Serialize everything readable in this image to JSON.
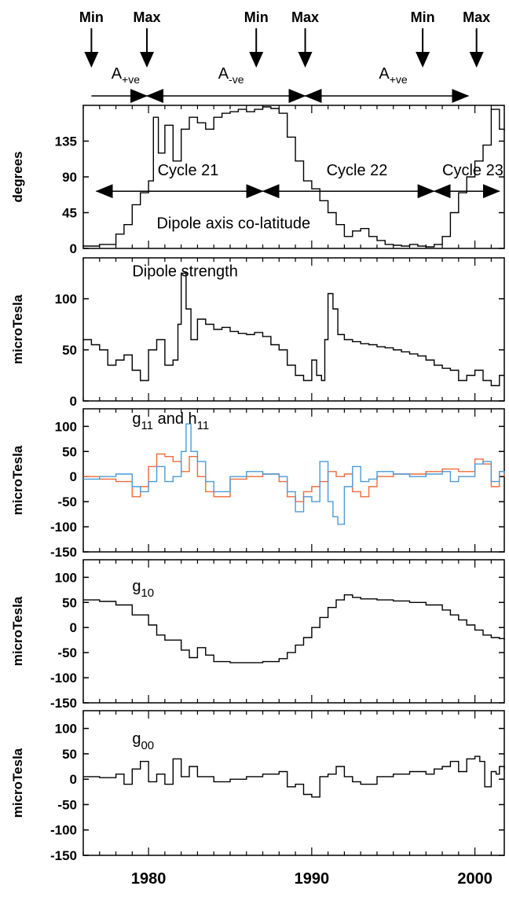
{
  "solar_events": [
    {
      "label": "Min",
      "year": 1976.5
    },
    {
      "label": "Max",
      "year": 1979.9
    },
    {
      "label": "Min",
      "year": 1986.6
    },
    {
      "label": "Max",
      "year": 1989.6
    },
    {
      "label": "Min",
      "year": 1996.8
    },
    {
      "label": "Max",
      "year": 2000.1
    }
  ],
  "polarity_periods": [
    {
      "main": "A",
      "sub": "+ve",
      "start": 1976.5,
      "end": 1979.9
    },
    {
      "main": "A",
      "sub": "-ve",
      "start": 1979.9,
      "end": 1989.6
    },
    {
      "main": "A",
      "sub": "+ve",
      "start": 1989.6,
      "end": 1999.6
    }
  ],
  "x_axis": {
    "min": 1976.0,
    "max": 2001.8,
    "ticks": [
      "1980",
      "1990",
      "2000"
    ],
    "tick_values": [
      1980,
      1990,
      2000
    ]
  },
  "chart_data": [
    {
      "type": "line",
      "ylabel": "degrees",
      "ylim": [
        0,
        180
      ],
      "yticks": [
        0,
        45,
        90,
        135
      ],
      "ytick_labels": [
        "0",
        "45",
        "90",
        "135"
      ],
      "annotations": [
        "Dipole axis co-latitude"
      ],
      "cycles": [
        {
          "label": "Cycle 21",
          "start": 1976.8,
          "end": 1987.0
        },
        {
          "label": "Cycle 22",
          "start": 1987.0,
          "end": 1997.5
        },
        {
          "label": "Cycle 23",
          "start": 1997.5,
          "end": 2001.5
        }
      ],
      "series": [
        {
          "color": "#000000",
          "x": [
            1976.0,
            1977.0,
            1978.0,
            1978.5,
            1979.0,
            1979.5,
            1980.0,
            1980.3,
            1980.6,
            1981.0,
            1981.5,
            1982.0,
            1982.5,
            1983.0,
            1983.5,
            1984.0,
            1984.5,
            1985.0,
            1985.5,
            1986.0,
            1986.5,
            1987.0,
            1987.5,
            1988.0,
            1988.5,
            1989.0,
            1989.5,
            1990.0,
            1990.5,
            1991.0,
            1991.5,
            1992.0,
            1992.5,
            1993.0,
            1993.5,
            1994.0,
            1994.5,
            1995.0,
            1995.5,
            1996.0,
            1996.5,
            1997.0,
            1997.5,
            1998.0,
            1998.5,
            1999.0,
            1999.5,
            2000.0,
            2000.5,
            2001.0,
            2001.5,
            2001.8
          ],
          "y": [
            3,
            5,
            18,
            30,
            55,
            70,
            85,
            165,
            120,
            155,
            110,
            150,
            165,
            158,
            150,
            165,
            170,
            172,
            175,
            172,
            175,
            178,
            176,
            170,
            140,
            110,
            85,
            75,
            60,
            45,
            30,
            15,
            22,
            25,
            15,
            10,
            5,
            4,
            3,
            5,
            3,
            2,
            5,
            15,
            45,
            70,
            90,
            110,
            130,
            175,
            150,
            148
          ]
        }
      ]
    },
    {
      "type": "line",
      "ylabel": "microTesla",
      "ylim": [
        0,
        140
      ],
      "yticks": [
        0,
        50,
        100
      ],
      "ytick_labels": [
        "0",
        "50",
        "100"
      ],
      "annotations": [
        "Dipole strength"
      ],
      "series": [
        {
          "color": "#000000",
          "x": [
            1976.0,
            1976.5,
            1977.0,
            1977.5,
            1978.0,
            1978.5,
            1979.0,
            1979.5,
            1980.0,
            1980.5,
            1981.0,
            1981.5,
            1981.8,
            1982.0,
            1982.3,
            1982.6,
            1983.0,
            1983.5,
            1984.0,
            1984.5,
            1985.0,
            1985.5,
            1986.0,
            1986.5,
            1987.0,
            1987.5,
            1988.0,
            1988.5,
            1989.0,
            1989.5,
            1990.0,
            1990.3,
            1990.6,
            1990.8,
            1991.0,
            1991.3,
            1991.6,
            1992.0,
            1992.5,
            1993.0,
            1993.5,
            1994.0,
            1994.5,
            1995.0,
            1995.5,
            1996.0,
            1996.5,
            1997.0,
            1997.5,
            1998.0,
            1998.5,
            1999.0,
            1999.5,
            2000.0,
            2000.5,
            2001.0,
            2001.5,
            2001.8
          ],
          "y": [
            60,
            55,
            50,
            35,
            40,
            45,
            30,
            20,
            50,
            60,
            35,
            40,
            75,
            125,
            90,
            60,
            80,
            75,
            70,
            72,
            68,
            66,
            65,
            67,
            63,
            55,
            50,
            35,
            25,
            20,
            40,
            25,
            20,
            60,
            105,
            90,
            65,
            60,
            58,
            56,
            55,
            53,
            52,
            50,
            48,
            46,
            44,
            40,
            35,
            32,
            30,
            20,
            25,
            30,
            20,
            15,
            25,
            25
          ]
        }
      ]
    },
    {
      "type": "line",
      "ylabel": "microTesla",
      "ylim": [
        -150,
        135
      ],
      "yticks": [
        -150,
        -100,
        -50,
        0,
        50,
        100
      ],
      "ytick_labels": [
        "-150",
        "-100",
        "-50",
        "0",
        "50",
        "100"
      ],
      "annotations": [
        {
          "main": "g",
          "sub": "11"
        },
        {
          "main": "and  h",
          "sub": "11"
        }
      ],
      "series": [
        {
          "color": "#f06a3a",
          "x": [
            1976.0,
            1977.0,
            1978.0,
            1979.0,
            1979.5,
            1980.0,
            1980.5,
            1981.0,
            1981.5,
            1982.0,
            1982.5,
            1983.0,
            1983.5,
            1984.0,
            1985.0,
            1986.0,
            1987.0,
            1988.0,
            1988.5,
            1989.0,
            1989.5,
            1990.0,
            1990.5,
            1991.0,
            1991.5,
            1992.0,
            1992.5,
            1993.0,
            1993.5,
            1994.0,
            1995.0,
            1996.0,
            1997.0,
            1998.0,
            1999.0,
            2000.0,
            2000.5,
            2001.0,
            2001.5,
            2001.8
          ],
          "y": [
            0,
            -5,
            -10,
            -40,
            -20,
            20,
            45,
            40,
            30,
            10,
            40,
            0,
            -30,
            -40,
            -5,
            0,
            5,
            -10,
            -40,
            -50,
            -30,
            -20,
            -10,
            10,
            0,
            5,
            -30,
            -40,
            -20,
            0,
            5,
            5,
            10,
            15,
            10,
            35,
            25,
            -20,
            10,
            0
          ]
        },
        {
          "color": "#4a9ad8",
          "x": [
            1976.0,
            1977.0,
            1978.0,
            1979.0,
            1979.5,
            1980.0,
            1980.5,
            1981.0,
            1981.5,
            1982.0,
            1982.3,
            1982.6,
            1983.0,
            1983.5,
            1984.0,
            1985.0,
            1986.0,
            1987.0,
            1988.0,
            1988.5,
            1989.0,
            1989.5,
            1990.0,
            1990.5,
            1991.0,
            1991.3,
            1991.6,
            1992.0,
            1992.5,
            1993.0,
            1993.5,
            1994.0,
            1995.0,
            1996.0,
            1997.0,
            1998.0,
            1998.5,
            1999.0,
            2000.0,
            2000.5,
            2001.0,
            2001.5,
            2001.8
          ],
          "y": [
            -5,
            0,
            5,
            -20,
            -30,
            -10,
            20,
            -10,
            0,
            50,
            105,
            50,
            30,
            -10,
            -30,
            0,
            10,
            5,
            0,
            -30,
            -70,
            -40,
            -50,
            30,
            -50,
            -80,
            -95,
            -20,
            20,
            -10,
            -5,
            10,
            5,
            0,
            5,
            10,
            -10,
            0,
            25,
            30,
            -10,
            10,
            5
          ]
        }
      ]
    },
    {
      "type": "line",
      "ylabel": "microTesla",
      "ylim": [
        -150,
        135
      ],
      "yticks": [
        -150,
        -100,
        -50,
        0,
        50,
        100
      ],
      "ytick_labels": [
        "-150",
        "-100",
        "-50",
        "0",
        "50",
        "100"
      ],
      "annotations": [
        {
          "main": "g",
          "sub": "10"
        }
      ],
      "series": [
        {
          "color": "#000000",
          "x": [
            1976.0,
            1977.0,
            1978.0,
            1979.0,
            1980.0,
            1980.5,
            1981.0,
            1982.0,
            1982.5,
            1983.0,
            1983.5,
            1984.0,
            1985.0,
            1986.0,
            1987.0,
            1988.0,
            1988.5,
            1989.0,
            1989.5,
            1990.0,
            1990.5,
            1991.0,
            1991.5,
            1992.0,
            1992.5,
            1993.0,
            1994.0,
            1995.0,
            1996.0,
            1997.0,
            1998.0,
            1998.5,
            1999.0,
            1999.5,
            2000.0,
            2000.5,
            2001.0,
            2001.5,
            2001.8
          ],
          "y": [
            55,
            52,
            45,
            25,
            5,
            -15,
            -25,
            -45,
            -60,
            -40,
            -55,
            -68,
            -70,
            -70,
            -68,
            -62,
            -50,
            -35,
            -20,
            0,
            20,
            40,
            55,
            65,
            60,
            57,
            55,
            53,
            50,
            45,
            35,
            25,
            15,
            5,
            -5,
            -15,
            -20,
            -22,
            -25
          ]
        }
      ]
    },
    {
      "type": "line",
      "ylabel": "microTesla",
      "ylim": [
        -150,
        135
      ],
      "yticks": [
        -150,
        -100,
        -50,
        0,
        50,
        100
      ],
      "ytick_labels": [
        "-150",
        "-100",
        "-50",
        "0",
        "50",
        "100"
      ],
      "annotations": [
        {
          "main": "g",
          "sub": "00"
        }
      ],
      "series": [
        {
          "color": "#000000",
          "x": [
            1976.0,
            1977.0,
            1978.0,
            1978.5,
            1979.0,
            1979.5,
            1980.0,
            1980.5,
            1981.0,
            1981.5,
            1982.0,
            1982.5,
            1983.0,
            1984.0,
            1985.0,
            1986.0,
            1987.0,
            1988.0,
            1988.5,
            1989.0,
            1989.5,
            1990.0,
            1990.5,
            1991.0,
            1991.5,
            1992.0,
            1992.5,
            1993.0,
            1994.0,
            1995.0,
            1996.0,
            1997.0,
            1997.5,
            1998.0,
            1998.5,
            1999.0,
            1999.5,
            2000.0,
            2000.3,
            2000.6,
            2001.0,
            2001.3,
            2001.5,
            2001.8
          ],
          "y": [
            5,
            3,
            10,
            -10,
            20,
            35,
            -5,
            10,
            -10,
            40,
            5,
            25,
            5,
            -5,
            0,
            5,
            10,
            15,
            -15,
            -10,
            -30,
            -35,
            5,
            10,
            25,
            5,
            -5,
            -10,
            5,
            10,
            15,
            10,
            20,
            25,
            35,
            15,
            40,
            45,
            35,
            -15,
            15,
            10,
            25,
            20
          ]
        }
      ]
    }
  ]
}
